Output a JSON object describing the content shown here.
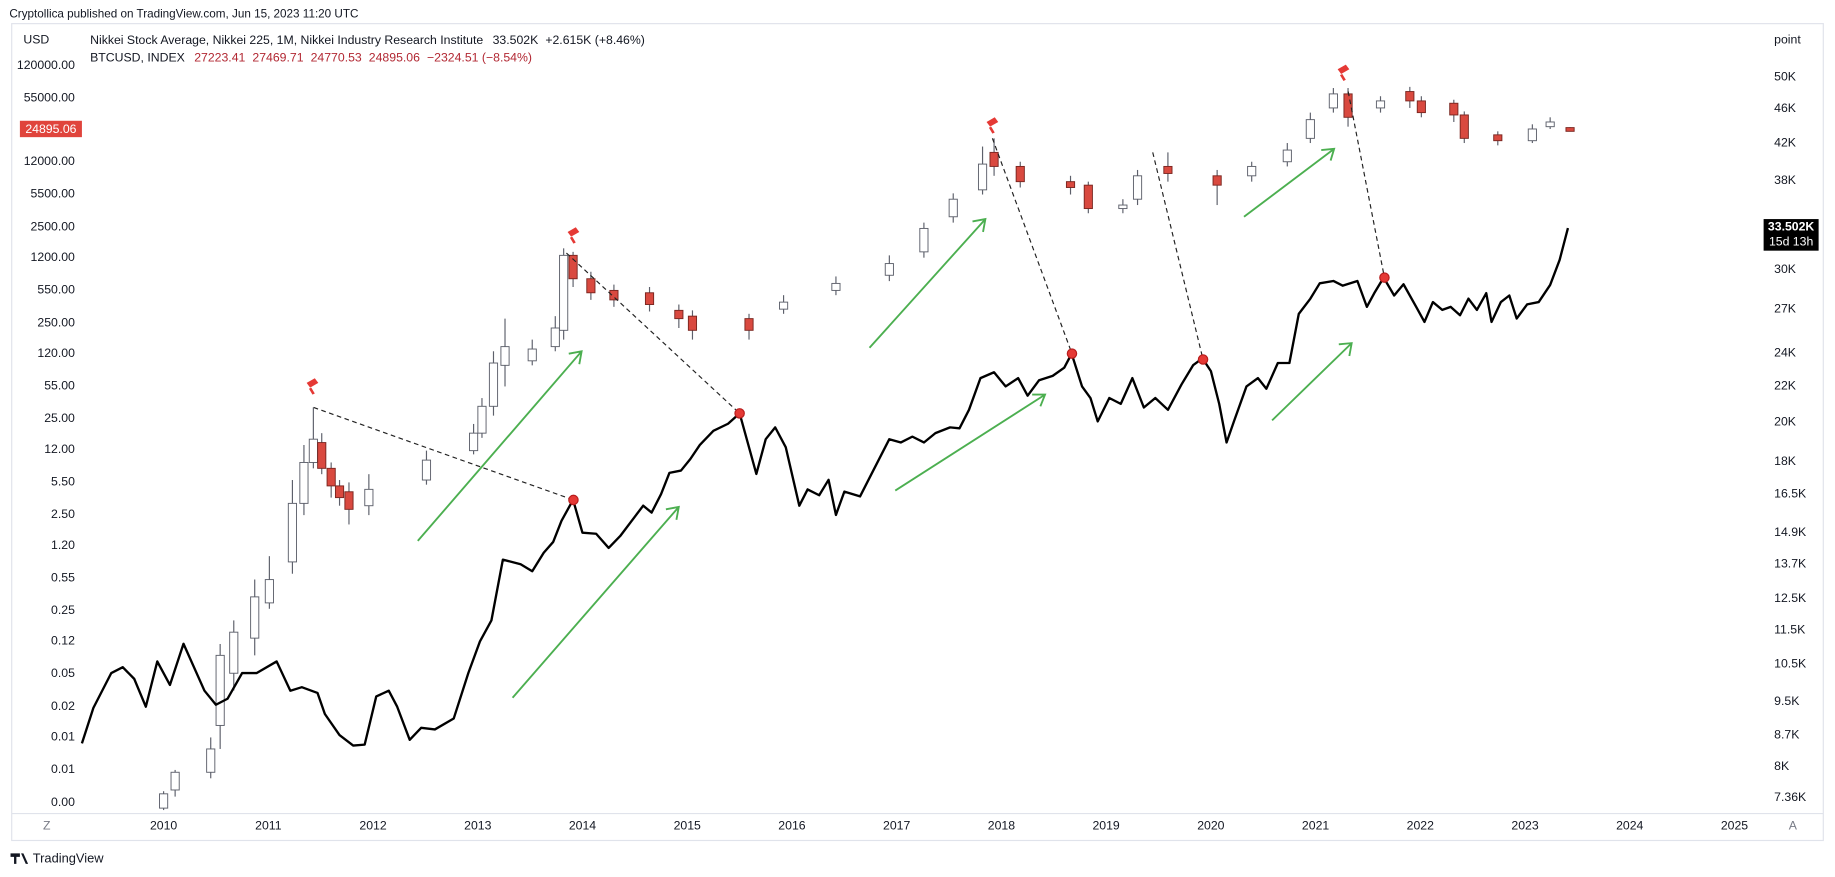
{
  "header": {
    "publisher": "Cryptollica published on TradingView.com, Jun 15, 2023 11:20 UTC",
    "left_unit": "USD",
    "right_unit": "point",
    "footer": "TradingView",
    "scale_buttons": [
      "Z",
      "A"
    ]
  },
  "chart_data": [
    {
      "type": "candlestick",
      "name": "BTCUSD, INDEX",
      "legend_values": [
        "27223.41",
        "27469.71",
        "24770.53",
        "24895.06",
        "−2324.51 (−8.54%)"
      ],
      "badge": "24895.06",
      "up_color": "#ffffff",
      "down_color": "#d9493f",
      "log_scale": true,
      "xlim": [
        2009.22,
        2025.2
      ],
      "xticks": [
        2010,
        2011,
        2012,
        2013,
        2014,
        2015,
        2016,
        2017,
        2018,
        2019,
        2020,
        2021,
        2022,
        2023,
        2024,
        2025
      ],
      "ylim": [
        0.00193,
        330000
      ],
      "yticks": [
        {
          "value": 120000,
          "label": "120000.00"
        },
        {
          "value": 55000,
          "label": "55000.00"
        },
        {
          "value": 12000,
          "label": "12000.00"
        },
        {
          "value": 5500,
          "label": "5500.00"
        },
        {
          "value": 2500,
          "label": "2500.00"
        },
        {
          "value": 1200,
          "label": "1200.00"
        },
        {
          "value": 550,
          "label": "550.00"
        },
        {
          "value": 250,
          "label": "250.00"
        },
        {
          "value": 120,
          "label": "120.00"
        },
        {
          "value": 55,
          "label": "55.00"
        },
        {
          "value": 25,
          "label": "25.00"
        },
        {
          "value": 12,
          "label": "12.00"
        },
        {
          "value": 5.5,
          "label": "5.50"
        },
        {
          "value": 2.5,
          "label": "2.50"
        },
        {
          "value": 1.2,
          "label": "1.20"
        },
        {
          "value": 0.55,
          "label": "0.55"
        },
        {
          "value": 0.25,
          "label": "0.25"
        },
        {
          "value": 0.12,
          "label": "0.12"
        },
        {
          "value": 0.055,
          "label": "0.05"
        },
        {
          "value": 0.025,
          "label": "0.02"
        },
        {
          "value": 0.012,
          "label": "0.01"
        },
        {
          "value": 0.0055,
          "label": "0.01"
        },
        {
          "value": 0.0025,
          "label": "0.00"
        }
      ],
      "x": [
        2010.0,
        2010.11,
        2010.45,
        2010.54,
        2010.67,
        2010.87,
        2011.01,
        2011.23,
        2011.34,
        2011.43,
        2011.51,
        2011.6,
        2011.68,
        2011.77,
        2011.96,
        2012.51,
        2012.96,
        2013.04,
        2013.15,
        2013.26,
        2013.52,
        2013.74,
        2013.82,
        2013.91,
        2014.08,
        2014.3,
        2014.64,
        2014.92,
        2015.05,
        2015.59,
        2015.92,
        2016.42,
        2016.93,
        2017.26,
        2017.54,
        2017.82,
        2017.93,
        2018.18,
        2018.66,
        2018.83,
        2019.16,
        2019.3,
        2019.59,
        2020.06,
        2020.39,
        2020.73,
        2020.95,
        2021.17,
        2021.31,
        2021.62,
        2021.9,
        2022.01,
        2022.32,
        2022.42,
        2022.74,
        2023.07,
        2023.24,
        2023.43
      ],
      "open": [
        0.0022,
        0.0034,
        0.0052,
        0.016,
        0.056,
        0.13,
        0.303,
        0.81,
        3.3,
        8.81,
        14.2,
        7.65,
        5.02,
        4.36,
        3.12,
        5.78,
        11.7,
        17.8,
        33.9,
        90.6,
        101,
        142,
        210,
        1269,
        724,
        547,
        517,
        339,
        295,
        278,
        349,
        547,
        787,
        1380,
        3204,
        6113,
        15020,
        10720,
        7441,
        6840,
        3901,
        4883,
        10720,
        8561,
        8561,
        12000,
        21030,
        43640,
        61130,
        43640,
        64670,
        51660,
        48830,
        36880,
        22880,
        19890,
        27840,
        27223.41
      ],
      "high": [
        0.0033,
        0.0055,
        0.012,
        0.113,
        0.199,
        0.531,
        0.93,
        5.78,
        13.4,
        33.0,
        17.8,
        8.81,
        5.78,
        5.46,
        6.65,
        11.7,
        22.2,
        41.3,
        127,
        278,
        168,
        295,
        1502,
        1380,
        856,
        629,
        594,
        390,
        339,
        312,
        488,
        765,
        1269,
        2784,
        5620,
        17280,
        21030,
        12000,
        8561,
        7441,
        4883,
        9853,
        15020,
        9853,
        12000,
        18800,
        39010,
        70370,
        70370,
        57810,
        72350,
        57810,
        53130,
        40130,
        24890,
        29460,
        34860,
        27469.71
      ],
      "low": [
        0.0021,
        0.0029,
        0.0045,
        0.0091,
        0.037,
        0.086,
        0.263,
        0.61,
        2.49,
        7.65,
        6.65,
        3.79,
        3.12,
        1.99,
        2.49,
        5.17,
        10.7,
        15.9,
        27.1,
        54.6,
        90.6,
        127,
        168,
        594,
        436,
        369,
        330,
        222,
        168,
        168,
        312,
        488,
        684,
        1200,
        2784,
        5463,
        8561,
        6467,
        5463,
        3486,
        3486,
        4244,
        7441,
        4244,
        7441,
        10720,
        18800,
        39010,
        27840,
        39010,
        43640,
        34860,
        31160,
        18800,
        17780,
        18800,
        26330,
        24770.53
      ],
      "close": [
        0.0031,
        0.0052,
        0.0091,
        0.086,
        0.15,
        0.35,
        0.53,
        3.3,
        8.81,
        15.4,
        7.65,
        5.02,
        3.79,
        2.86,
        4.62,
        9.32,
        17.8,
        33.9,
        95.8,
        142,
        134,
        222,
        1269,
        724,
        517,
        436,
        390,
        278,
        210,
        210,
        413,
        647,
        1042,
        2421,
        4883,
        11340,
        10720,
        7441,
        6467,
        3901,
        4244,
        8561,
        9057,
        6840,
        10720,
        15880,
        32960,
        61130,
        34860,
        51660,
        51660,
        39010,
        36880,
        21030,
        19890,
        26330,
        31160,
        24895.06
      ]
    },
    {
      "type": "line",
      "name": "Nikkei Stock Average, Nikkei 225, 1M, Nikkei Industry Research Institute",
      "legend_values": [
        "33.502K",
        "+2.615K (+8.46%)"
      ],
      "badge": [
        "33.502K",
        "15d 13h"
      ],
      "color": "#000000",
      "axis": "y2",
      "log_scale": true,
      "y2lim": [
        7060,
        57700
      ],
      "y2ticks": [
        {
          "value": 50000,
          "label": "50K"
        },
        {
          "value": 46000,
          "label": "46K"
        },
        {
          "value": 42000,
          "label": "42K"
        },
        {
          "value": 38000,
          "label": "38K"
        },
        {
          "value": 30000,
          "label": "30K"
        },
        {
          "value": 27000,
          "label": "27K"
        },
        {
          "value": 24000,
          "label": "24K"
        },
        {
          "value": 22000,
          "label": "22K"
        },
        {
          "value": 20000,
          "label": "20K"
        },
        {
          "value": 18000,
          "label": "18K"
        },
        {
          "value": 16500,
          "label": "16.5K"
        },
        {
          "value": 14900,
          "label": "14.9K"
        },
        {
          "value": 13700,
          "label": "13.7K"
        },
        {
          "value": 12500,
          "label": "12.5K"
        },
        {
          "value": 11500,
          "label": "11.5K"
        },
        {
          "value": 10500,
          "label": "10.5K"
        },
        {
          "value": 9500,
          "label": "9.5K"
        },
        {
          "value": 8700,
          "label": "8.7K"
        },
        {
          "value": 8000,
          "label": "8K"
        },
        {
          "value": 7360,
          "label": "7.36K"
        }
      ],
      "x": [
        2009.22,
        2009.33,
        2009.5,
        2009.61,
        2009.72,
        2009.83,
        2009.94,
        2010.06,
        2010.19,
        2010.39,
        2010.5,
        2010.61,
        2010.75,
        2010.89,
        2011.08,
        2011.21,
        2011.32,
        2011.47,
        2011.54,
        2011.68,
        2011.81,
        2011.92,
        2012.03,
        2012.15,
        2012.23,
        2012.35,
        2012.46,
        2012.59,
        2012.77,
        2012.91,
        2013.02,
        2013.13,
        2013.24,
        2013.41,
        2013.52,
        2013.63,
        2013.72,
        2013.8,
        2013.91,
        2014.0,
        2014.13,
        2014.25,
        2014.36,
        2014.47,
        2014.58,
        2014.66,
        2014.75,
        2014.83,
        2014.94,
        2015.03,
        2015.12,
        2015.25,
        2015.39,
        2015.5,
        2015.59,
        2015.66,
        2015.75,
        2015.84,
        2015.94,
        2016.07,
        2016.15,
        2016.26,
        2016.35,
        2016.42,
        2016.5,
        2016.65,
        2016.76,
        2016.93,
        2017.04,
        2017.15,
        2017.26,
        2017.37,
        2017.51,
        2017.6,
        2017.69,
        2017.8,
        2017.93,
        2018.04,
        2018.16,
        2018.25,
        2018.36,
        2018.49,
        2018.6,
        2018.67,
        2018.77,
        2018.85,
        2018.92,
        2019.03,
        2019.14,
        2019.25,
        2019.36,
        2019.47,
        2019.59,
        2019.72,
        2019.83,
        2019.92,
        2020.0,
        2020.08,
        2020.15,
        2020.22,
        2020.34,
        2020.45,
        2020.53,
        2020.64,
        2020.75,
        2020.84,
        2020.95,
        2021.04,
        2021.17,
        2021.26,
        2021.4,
        2021.49,
        2021.56,
        2021.65,
        2021.75,
        2021.84,
        2021.96,
        2022.04,
        2022.12,
        2022.21,
        2022.29,
        2022.38,
        2022.46,
        2022.54,
        2022.63,
        2022.68,
        2022.77,
        2022.85,
        2022.92,
        2023.02,
        2023.13,
        2023.24,
        2023.33,
        2023.41
      ],
      "values": [
        8510,
        9350,
        10260,
        10420,
        10100,
        9380,
        10580,
        9940,
        11090,
        9790,
        9430,
        9580,
        10260,
        10260,
        10580,
        9790,
        9880,
        9730,
        9200,
        8700,
        8460,
        8480,
        9640,
        9790,
        9380,
        8590,
        8870,
        8830,
        9090,
        10260,
        11160,
        11800,
        13870,
        13700,
        13450,
        14130,
        14540,
        15380,
        16260,
        14900,
        14860,
        14310,
        14770,
        15380,
        16010,
        15720,
        16510,
        17470,
        17580,
        18130,
        18820,
        19540,
        19910,
        20470,
        18710,
        17420,
        19110,
        19720,
        18710,
        16010,
        16720,
        16460,
        17150,
        15620,
        16620,
        16410,
        17420,
        19110,
        18940,
        19240,
        18940,
        19420,
        19720,
        19670,
        20660,
        22480,
        22830,
        21990,
        22480,
        21450,
        22350,
        22610,
        23110,
        23990,
        21990,
        21320,
        20030,
        21320,
        20990,
        22480,
        20790,
        21320,
        20660,
        22100,
        23260,
        23690,
        22900,
        20990,
        18940,
        20030,
        21990,
        22480,
        21850,
        23400,
        23400,
        26670,
        27770,
        28920,
        29100,
        28740,
        29100,
        27170,
        28180,
        29370,
        28000,
        28850,
        27170,
        26100,
        27520,
        26950,
        27170,
        26570,
        27770,
        26950,
        28180,
        26100,
        27520,
        28000,
        26340,
        27350,
        27520,
        28800,
        30780,
        33502
      ]
    }
  ]
}
